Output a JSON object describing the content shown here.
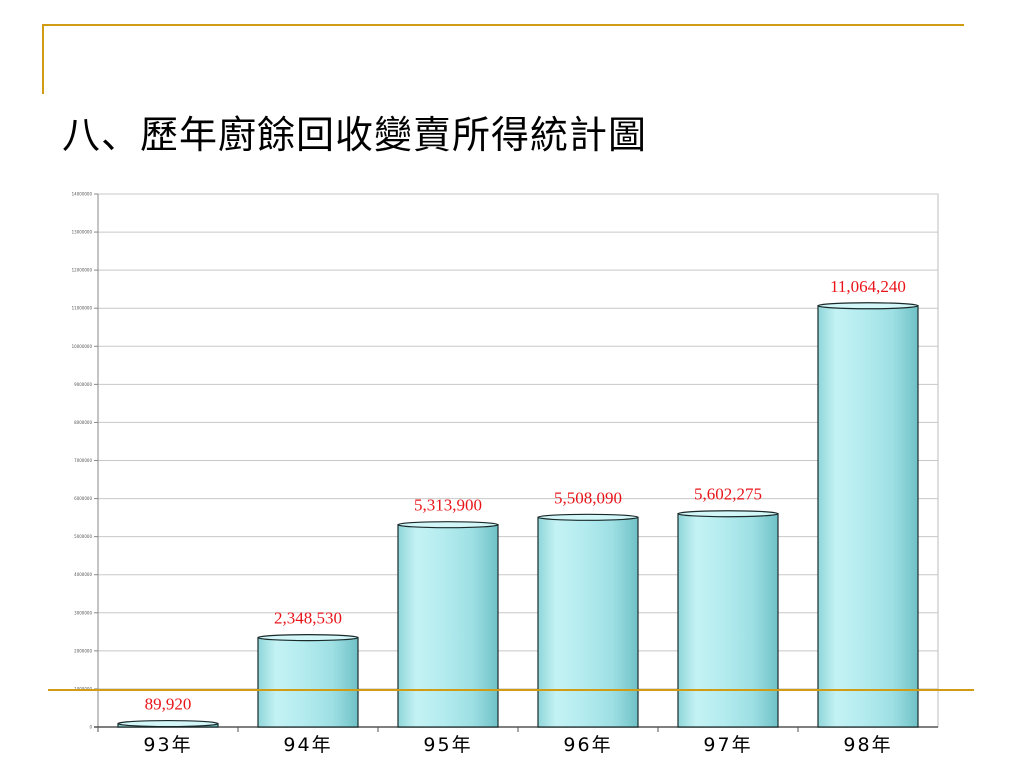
{
  "slide": {
    "title": "八、歷年廚餘回收變賣所得統計圖"
  },
  "colors": {
    "accent_rule": "#d19b14",
    "value_label": "#e8141a",
    "bar_fill": "#b8eef0"
  },
  "chart_data": {
    "type": "bar",
    "categories": [
      "93年",
      "94年",
      "95年",
      "96年",
      "97年",
      "98年"
    ],
    "values": [
      89920,
      2348530,
      5313900,
      5508090,
      5602275,
      11064240
    ],
    "value_labels": [
      "89,920",
      "2,348,530",
      "5,313,900",
      "5,508,090",
      "5,602,275",
      "11,064,240"
    ],
    "y_ticks": [
      0,
      1000000,
      2000000,
      3000000,
      4000000,
      5000000,
      6000000,
      7000000,
      8000000,
      9000000,
      10000000,
      11000000,
      12000000,
      13000000,
      14000000
    ],
    "ylim": [
      0,
      14000000
    ],
    "grid": true,
    "legend": "none",
    "bar_style": "3d-cylinder"
  }
}
